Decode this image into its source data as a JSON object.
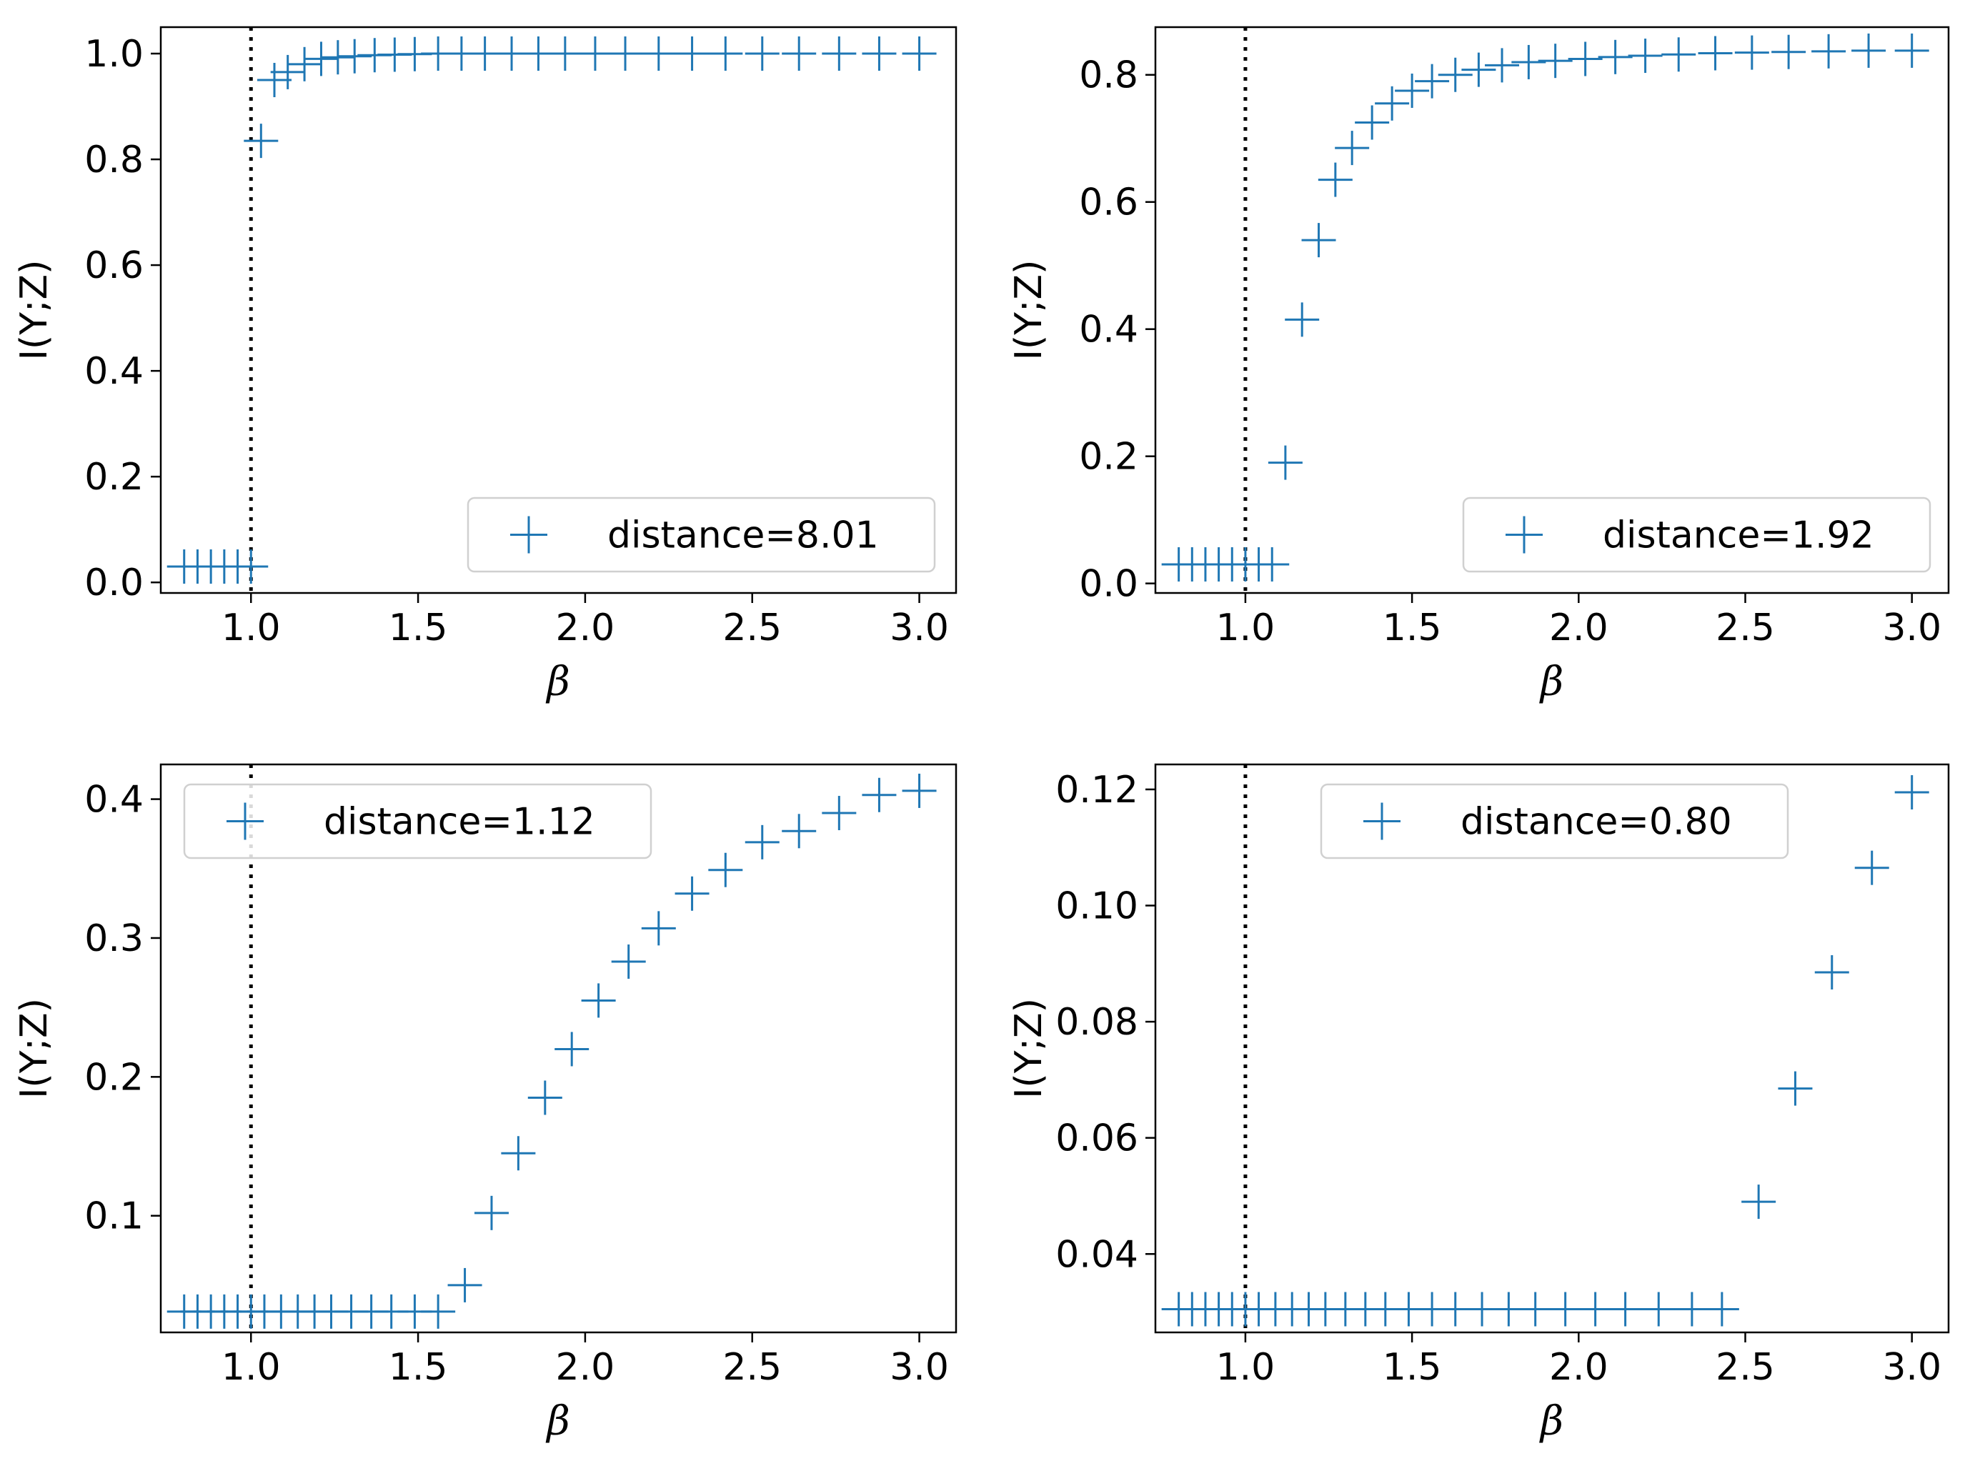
{
  "figure": {
    "marker_color": "#1f77b4",
    "vline_color": "#000000"
  },
  "chart_data": [
    {
      "type": "scatter",
      "marker": "plus",
      "xlabel": "β",
      "ylabel": "I(Y;Z)",
      "xlim": [
        0.73,
        3.11
      ],
      "ylim": [
        -0.02,
        1.05
      ],
      "xticks": [
        1.0,
        1.5,
        2.0,
        2.5,
        3.0
      ],
      "xtick_labels": [
        "1.0",
        "1.5",
        "2.0",
        "2.5",
        "3.0"
      ],
      "yticks": [
        0.0,
        0.2,
        0.4,
        0.6,
        0.8,
        1.0
      ],
      "ytick_labels": [
        "0.0",
        "0.2",
        "0.4",
        "0.6",
        "0.8",
        "1.0"
      ],
      "vline_x": 1.0,
      "legend": {
        "label": "distance=8.01",
        "position": "lower-right"
      },
      "series": [
        {
          "name": "distance=8.01",
          "x": [
            0.8,
            0.84,
            0.88,
            0.92,
            0.96,
            1.0,
            1.03,
            1.07,
            1.11,
            1.16,
            1.21,
            1.26,
            1.31,
            1.37,
            1.43,
            1.49,
            1.56,
            1.63,
            1.7,
            1.78,
            1.86,
            1.94,
            2.03,
            2.12,
            2.22,
            2.32,
            2.42,
            2.53,
            2.64,
            2.76,
            2.88,
            3.0
          ],
          "y": [
            0.03,
            0.03,
            0.03,
            0.03,
            0.03,
            0.03,
            0.835,
            0.95,
            0.965,
            0.98,
            0.99,
            0.993,
            0.995,
            0.997,
            0.998,
            0.999,
            1.0,
            1.0,
            1.0,
            1.0,
            1.0,
            1.0,
            1.0,
            1.0,
            1.0,
            1.0,
            1.0,
            1.0,
            1.0,
            1.0,
            1.0,
            1.0
          ]
        }
      ]
    },
    {
      "type": "scatter",
      "marker": "plus",
      "xlabel": "β",
      "ylabel": "I(Y;Z)",
      "xlim": [
        0.73,
        3.11
      ],
      "ylim": [
        -0.015,
        0.875
      ],
      "xticks": [
        1.0,
        1.5,
        2.0,
        2.5,
        3.0
      ],
      "xtick_labels": [
        "1.0",
        "1.5",
        "2.0",
        "2.5",
        "3.0"
      ],
      "yticks": [
        0.0,
        0.2,
        0.4,
        0.6,
        0.8
      ],
      "ytick_labels": [
        "0.0",
        "0.2",
        "0.4",
        "0.6",
        "0.8"
      ],
      "vline_x": 1.0,
      "legend": {
        "label": "distance=1.92",
        "position": "lower-right"
      },
      "series": [
        {
          "name": "distance=1.92",
          "x": [
            0.8,
            0.84,
            0.88,
            0.92,
            0.96,
            1.0,
            1.04,
            1.08,
            1.12,
            1.17,
            1.22,
            1.27,
            1.32,
            1.38,
            1.44,
            1.5,
            1.56,
            1.63,
            1.7,
            1.77,
            1.85,
            1.93,
            2.02,
            2.11,
            2.2,
            2.3,
            2.41,
            2.52,
            2.63,
            2.75,
            2.87,
            3.0
          ],
          "y": [
            0.03,
            0.03,
            0.03,
            0.03,
            0.03,
            0.03,
            0.03,
            0.03,
            0.19,
            0.415,
            0.54,
            0.635,
            0.685,
            0.725,
            0.755,
            0.775,
            0.79,
            0.8,
            0.808,
            0.815,
            0.82,
            0.822,
            0.825,
            0.828,
            0.83,
            0.832,
            0.834,
            0.835,
            0.836,
            0.837,
            0.838,
            0.838
          ]
        }
      ]
    },
    {
      "type": "scatter",
      "marker": "plus",
      "xlabel": "β",
      "ylabel": "I(Y;Z)",
      "xlim": [
        0.73,
        3.11
      ],
      "ylim": [
        0.016,
        0.425
      ],
      "xticks": [
        1.0,
        1.5,
        2.0,
        2.5,
        3.0
      ],
      "xtick_labels": [
        "1.0",
        "1.5",
        "2.0",
        "2.5",
        "3.0"
      ],
      "yticks": [
        0.1,
        0.2,
        0.3,
        0.4
      ],
      "ytick_labels": [
        "0.1",
        "0.2",
        "0.3",
        "0.4"
      ],
      "vline_x": 1.0,
      "legend": {
        "label": "distance=1.12",
        "position": "upper-left"
      },
      "series": [
        {
          "name": "distance=1.12",
          "x": [
            0.8,
            0.84,
            0.88,
            0.92,
            0.96,
            1.0,
            1.04,
            1.09,
            1.14,
            1.19,
            1.24,
            1.3,
            1.36,
            1.42,
            1.49,
            1.56,
            1.64,
            1.72,
            1.8,
            1.88,
            1.96,
            2.04,
            2.13,
            2.22,
            2.32,
            2.42,
            2.53,
            2.64,
            2.76,
            2.88,
            3.0
          ],
          "y": [
            0.031,
            0.031,
            0.031,
            0.031,
            0.031,
            0.031,
            0.031,
            0.031,
            0.031,
            0.031,
            0.031,
            0.031,
            0.031,
            0.031,
            0.031,
            0.031,
            0.05,
            0.102,
            0.145,
            0.185,
            0.22,
            0.255,
            0.283,
            0.307,
            0.332,
            0.349,
            0.369,
            0.377,
            0.39,
            0.403,
            0.406
          ]
        }
      ]
    },
    {
      "type": "scatter",
      "marker": "plus",
      "xlabel": "β",
      "ylabel": "I(Y;Z)",
      "xlim": [
        0.73,
        3.11
      ],
      "ylim": [
        0.0265,
        0.1243
      ],
      "xticks": [
        1.0,
        1.5,
        2.0,
        2.5,
        3.0
      ],
      "xtick_labels": [
        "1.0",
        "1.5",
        "2.0",
        "2.5",
        "3.0"
      ],
      "yticks": [
        0.04,
        0.06,
        0.08,
        0.1,
        0.12
      ],
      "ytick_labels": [
        "0.04",
        "0.06",
        "0.08",
        "0.10",
        "0.12"
      ],
      "vline_x": 1.0,
      "legend": {
        "label": "distance=0.80",
        "position": "upper-center"
      },
      "series": [
        {
          "name": "distance=0.80",
          "x": [
            0.8,
            0.84,
            0.88,
            0.92,
            0.96,
            1.0,
            1.04,
            1.09,
            1.14,
            1.19,
            1.24,
            1.3,
            1.36,
            1.42,
            1.49,
            1.56,
            1.63,
            1.71,
            1.79,
            1.87,
            1.96,
            2.05,
            2.14,
            2.24,
            2.34,
            2.43,
            2.54,
            2.65,
            2.76,
            2.88,
            3.0
          ],
          "y": [
            0.0305,
            0.0305,
            0.0305,
            0.0305,
            0.0305,
            0.0305,
            0.0305,
            0.0305,
            0.0305,
            0.0305,
            0.0305,
            0.0305,
            0.0305,
            0.0305,
            0.0305,
            0.0305,
            0.0305,
            0.0305,
            0.0305,
            0.0305,
            0.0305,
            0.0305,
            0.0305,
            0.0305,
            0.0305,
            0.0305,
            0.049,
            0.0685,
            0.0885,
            0.1065,
            0.1195
          ]
        }
      ]
    }
  ]
}
